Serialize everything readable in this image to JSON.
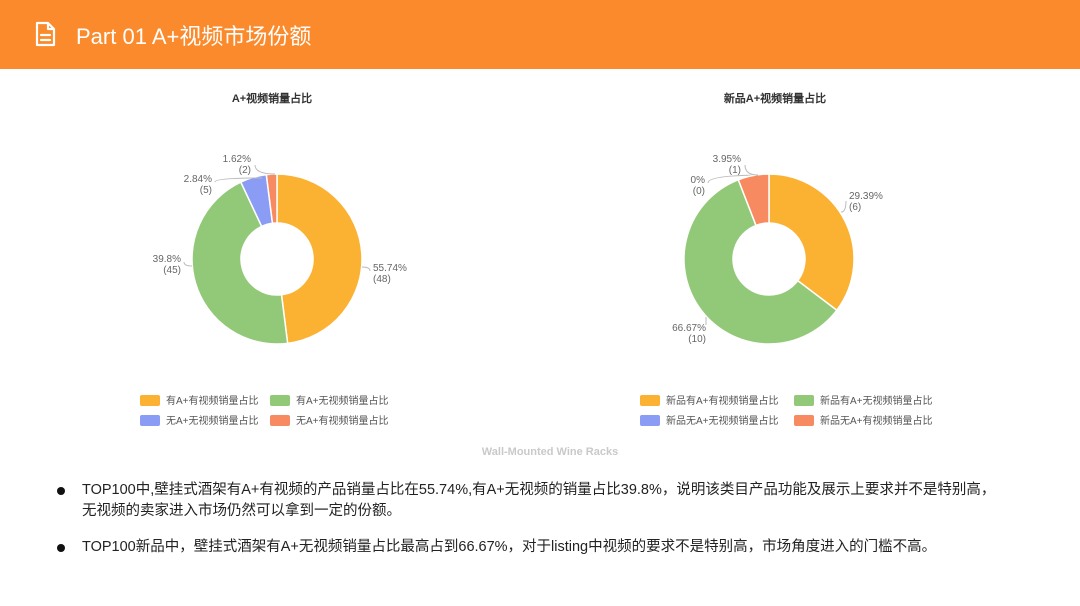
{
  "header": {
    "title": "Part 01  A+视频市场份额",
    "icon": "document-icon",
    "background": "#fa8a2b"
  },
  "chart_data": [
    {
      "type": "pie",
      "title": "A+视频销量占比",
      "donut": true,
      "legend_position": "bottom",
      "slices": [
        {
          "label": "有A+有视频销量占比",
          "percent_label": "55.74%",
          "count_label": "(48)",
          "value": 48,
          "color": "#fbb131"
        },
        {
          "label": "有A+无视频销量占比",
          "percent_label": "39.8%",
          "count_label": "(45)",
          "value": 45,
          "color": "#92c978"
        },
        {
          "label": "无A+无视频销量占比",
          "percent_label": "2.84%",
          "count_label": "(5)",
          "value": 5,
          "color": "#8b9cf5"
        },
        {
          "label": "无A+有视频销量占比",
          "percent_label": "1.62%",
          "count_label": "(2)",
          "value": 2,
          "color": "#f88a62"
        }
      ]
    },
    {
      "type": "pie",
      "title": "新品A+视频销量占比",
      "donut": true,
      "legend_position": "bottom",
      "slices": [
        {
          "label": "新品有A+有视频销量占比",
          "percent_label": "29.39%",
          "count_label": "(6)",
          "value": 6,
          "color": "#fbb131"
        },
        {
          "label": "新品有A+无视频销量占比",
          "percent_label": "66.67%",
          "count_label": "(10)",
          "value": 10,
          "color": "#92c978"
        },
        {
          "label": "新品无A+无视频销量占比",
          "percent_label": "0%",
          "count_label": "(0)",
          "value": 0,
          "color": "#8b9cf5"
        },
        {
          "label": "新品无A+有视频销量占比",
          "percent_label": "3.95%",
          "count_label": "(1)",
          "value": 1,
          "color": "#f88a62"
        }
      ]
    }
  ],
  "watermark": "Wall-Mounted Wine Racks",
  "bullets": [
    "TOP100中,壁挂式酒架有A+有视频的产品销量占比在55.74%,有A+无视频的销量占比39.8%，说明该类目产品功能及展示上要求并不是特别高，无视频的卖家进入市场仍然可以拿到一定的份额。",
    "TOP100新品中，壁挂式酒架有A+无视频销量占比最高占到66.67%，对于listing中视频的要求不是特别高，市场角度进入的门槛不高。"
  ]
}
